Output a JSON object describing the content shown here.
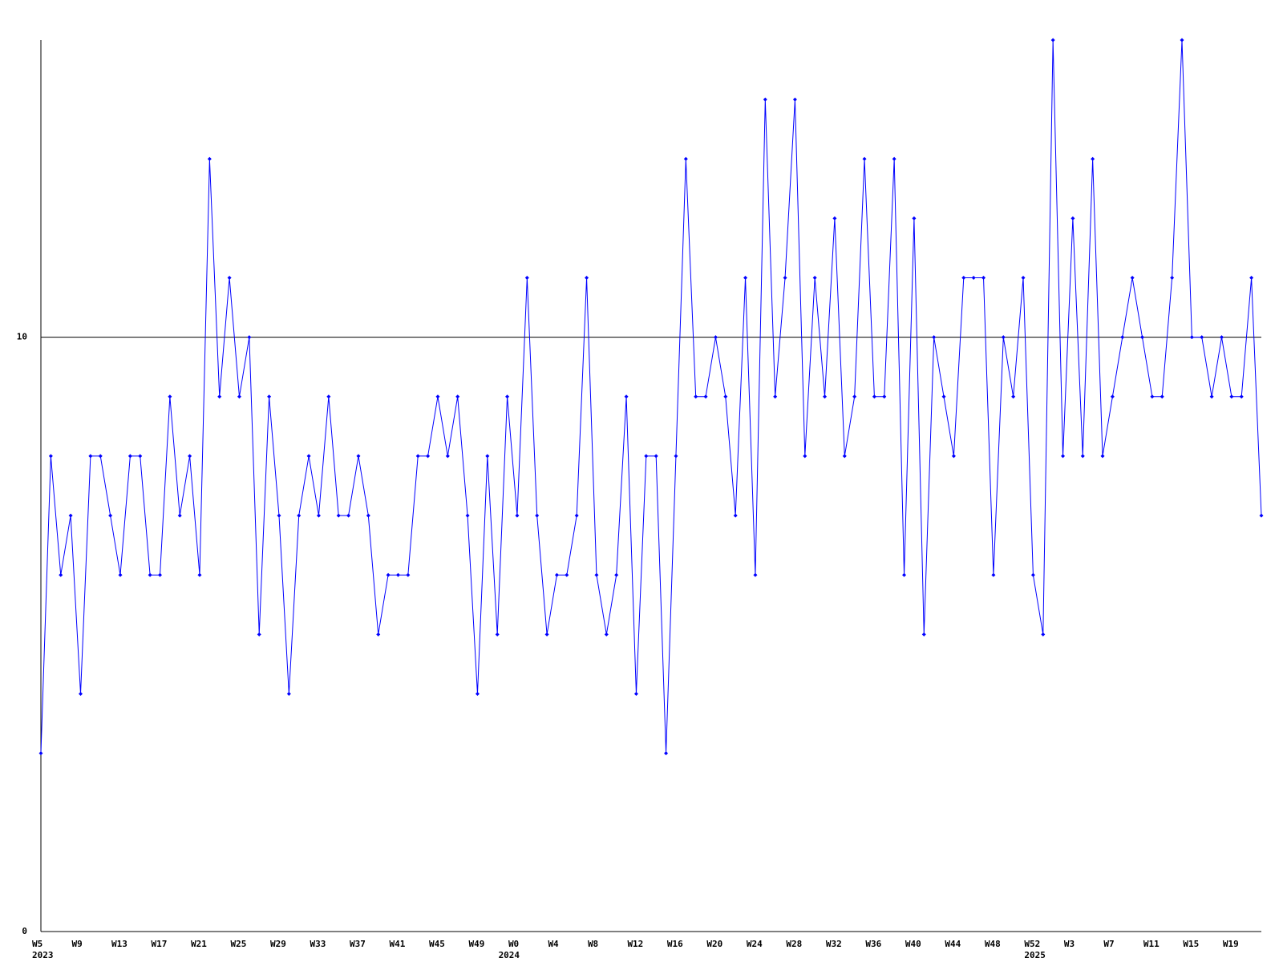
{
  "chart_data": {
    "type": "line",
    "color": "#0000ff",
    "ylim": [
      0,
      15
    ],
    "yticks": [
      0,
      10
    ],
    "grid": true,
    "categories": [
      "W5",
      null,
      null,
      null,
      "W9",
      null,
      null,
      null,
      "W13",
      null,
      null,
      null,
      "W17",
      null,
      null,
      null,
      "W21",
      null,
      null,
      null,
      "W25",
      null,
      null,
      null,
      "W29",
      null,
      null,
      null,
      "W33",
      null,
      null,
      null,
      "W37",
      null,
      null,
      null,
      "W41",
      null,
      null,
      null,
      "W45",
      null,
      null,
      null,
      "W49",
      null,
      null,
      null,
      "W0",
      null,
      null,
      null,
      "W4",
      null,
      null,
      null,
      "W8",
      null,
      null,
      null,
      "W12",
      null,
      null,
      null,
      "W16",
      null,
      null,
      null,
      "W20",
      null,
      null,
      null,
      "W24",
      null,
      null,
      null,
      "W28",
      null,
      null,
      null,
      "W32",
      null,
      null,
      null,
      "W36",
      null,
      null,
      null,
      "W40",
      null,
      null,
      null,
      "W44",
      null,
      null,
      null,
      "W48",
      null,
      null,
      null,
      "W52",
      null,
      null,
      null,
      "W3",
      null,
      null,
      null,
      "W7",
      null,
      null,
      null,
      "W11",
      null,
      null,
      null,
      "W15",
      null,
      null,
      null,
      "W19",
      null,
      null,
      null
    ],
    "years": [
      "2023",
      null,
      null,
      null,
      null,
      null,
      null,
      null,
      null,
      null,
      null,
      null,
      null,
      null,
      null,
      null,
      null,
      null,
      null,
      null,
      null,
      null,
      null,
      null,
      null,
      null,
      null,
      null,
      null,
      null,
      null,
      null,
      null,
      null,
      null,
      null,
      null,
      null,
      null,
      null,
      null,
      null,
      null,
      null,
      null,
      null,
      null,
      "2024",
      null,
      null,
      null,
      null,
      null,
      null,
      null,
      null,
      null,
      null,
      null,
      null,
      null,
      null,
      null,
      null,
      null,
      null,
      null,
      null,
      null,
      null,
      null,
      null,
      null,
      null,
      null,
      null,
      null,
      null,
      null,
      null,
      null,
      null,
      null,
      null,
      null,
      null,
      null,
      null,
      null,
      null,
      null,
      null,
      null,
      null,
      null,
      null,
      null,
      null,
      null,
      null,
      "2025",
      null,
      null,
      null,
      null,
      null,
      null,
      null,
      null,
      null,
      null,
      null,
      null,
      null,
      null,
      null,
      null,
      null,
      null,
      null,
      null,
      null,
      null
    ],
    "values": [
      3,
      8,
      6,
      7,
      4,
      8,
      8,
      7,
      6,
      8,
      8,
      6,
      6,
      9,
      7,
      8,
      6,
      13,
      9,
      11,
      9,
      10,
      5,
      9,
      7,
      4,
      7,
      8,
      7,
      9,
      7,
      7,
      8,
      7,
      5,
      6,
      6,
      6,
      8,
      8,
      9,
      8,
      9,
      7,
      4,
      8,
      5,
      9,
      7,
      11,
      7,
      5,
      6,
      6,
      7,
      11,
      6,
      5,
      6,
      9,
      4,
      8,
      8,
      3,
      8,
      13,
      9,
      9,
      10,
      9,
      7,
      11,
      6,
      14,
      9,
      11,
      14,
      8,
      11,
      9,
      12,
      8,
      9,
      13,
      9,
      9,
      13,
      6,
      12,
      5,
      10,
      9,
      8,
      11,
      11,
      11,
      6,
      10,
      9,
      11,
      6,
      5,
      15,
      8,
      12,
      8,
      13,
      8,
      9,
      10,
      11,
      10,
      9,
      9,
      11,
      15,
      10,
      10,
      9,
      10,
      9,
      9,
      11,
      7
    ]
  }
}
